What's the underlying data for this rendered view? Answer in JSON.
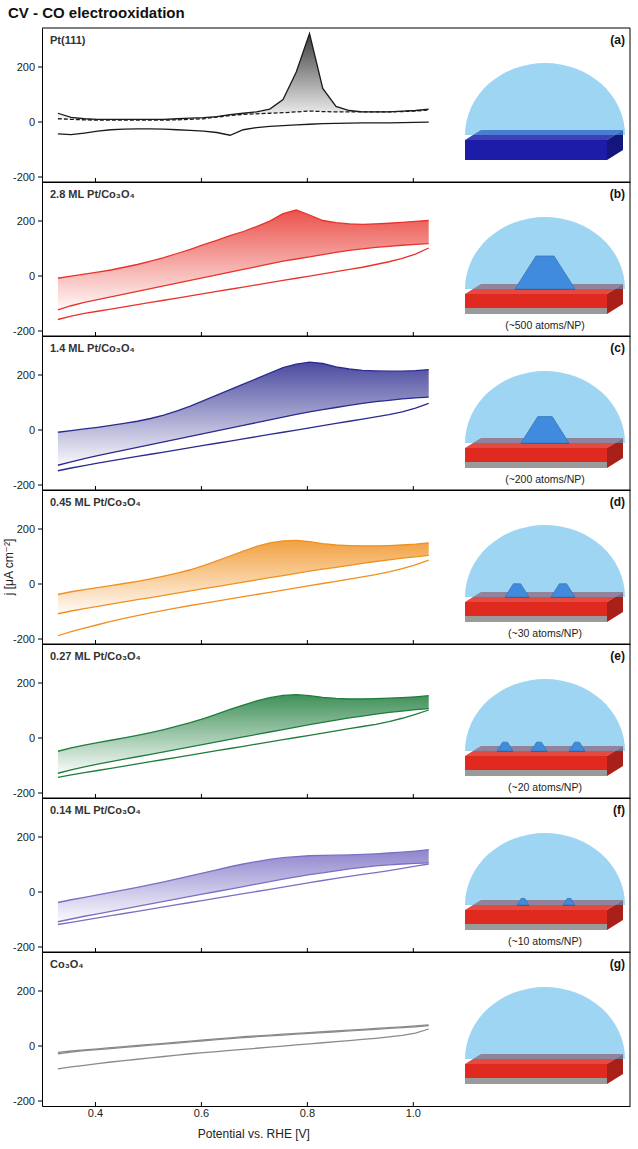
{
  "chart_data": [
    {
      "type": "line",
      "title": "CV - CO electrooxidation",
      "subtitle": "Pt(111)",
      "panel": "(a)",
      "x": [
        0.33,
        0.355,
        0.38,
        0.405,
        0.43,
        0.455,
        0.48,
        0.505,
        0.53,
        0.555,
        0.58,
        0.605,
        0.63,
        0.655,
        0.68,
        0.705,
        0.73,
        0.755,
        0.78,
        0.805,
        0.83,
        0.855,
        0.88,
        0.905,
        0.93,
        0.955,
        0.98,
        1.005,
        1.03
      ],
      "series": [
        {
          "type": "area",
          "color": "#1a1a1a",
          "values": [
            30,
            15,
            10,
            8,
            8,
            8,
            8,
            8,
            8,
            10,
            12,
            14,
            18,
            25,
            30,
            35,
            45,
            80,
            180,
            320,
            120,
            55,
            40,
            35,
            35,
            35,
            38,
            40,
            45
          ]
        },
        {
          "color": "#1a1a1a",
          "line_style": "dashed",
          "values": [
            10,
            8,
            6,
            5,
            5,
            5,
            5,
            5,
            5,
            6,
            8,
            10,
            16,
            22,
            26,
            28,
            30,
            32,
            35,
            38,
            36,
            35,
            35,
            35,
            35,
            35,
            36,
            38,
            42
          ]
        },
        {
          "color": "#1a1a1a",
          "values": [
            -45,
            -48,
            -42,
            -35,
            -30,
            -28,
            -27,
            -27,
            -28,
            -30,
            -32,
            -35,
            -40,
            -50,
            -30,
            -22,
            -18,
            -15,
            -12,
            -10,
            -8,
            -7,
            -6,
            -5,
            -5,
            -5,
            -4,
            -3,
            -2
          ]
        }
      ],
      "xlim": [
        0.3,
        1.41
      ],
      "xticks": [
        0.4,
        0.6,
        0.8,
        {
          "value": 1.0,
          "label": "1.0"
        }
      ],
      "ylim": [
        -220,
        340
      ],
      "yticks": [
        -200,
        0,
        200
      ],
      "tick_labels": "y"
    },
    {
      "type": "line",
      "subtitle": "2.8 ML Pt/Co₃O₄",
      "panel": "(b)",
      "annotation": "(~500 atoms/NP)",
      "x": [
        0.33,
        0.355,
        0.38,
        0.405,
        0.43,
        0.455,
        0.48,
        0.505,
        0.53,
        0.555,
        0.58,
        0.605,
        0.63,
        0.655,
        0.68,
        0.705,
        0.73,
        0.755,
        0.78,
        0.805,
        0.83,
        0.855,
        0.88,
        0.905,
        0.93,
        0.955,
        0.98,
        1.005,
        1.03
      ],
      "series": [
        {
          "type": "area",
          "color": "#e8332b",
          "values": [
            -10,
            -2,
            5,
            12,
            20,
            30,
            40,
            52,
            65,
            80,
            95,
            112,
            128,
            145,
            160,
            178,
            198,
            225,
            238,
            220,
            200,
            192,
            188,
            186,
            188,
            190,
            193,
            197,
            200
          ]
        },
        {
          "color": "#e8332b",
          "values": [
            -125,
            -110,
            -98,
            -88,
            -78,
            -68,
            -58,
            -48,
            -38,
            -28,
            -18,
            -8,
            2,
            12,
            22,
            32,
            42,
            52,
            60,
            68,
            76,
            84,
            91,
            97,
            102,
            106,
            110,
            113,
            116
          ]
        },
        {
          "color": "#e8332b",
          "values": [
            -160,
            -148,
            -138,
            -130,
            -122,
            -114,
            -106,
            -98,
            -90,
            -82,
            -74,
            -66,
            -58,
            -50,
            -42,
            -34,
            -26,
            -18,
            -10,
            -2,
            6,
            14,
            22,
            30,
            40,
            50,
            62,
            78,
            100
          ]
        }
      ],
      "xlim": [
        0.3,
        1.41
      ],
      "xticks": [
        0.4,
        0.6,
        0.8,
        {
          "value": 1.0,
          "label": "1.0"
        }
      ],
      "ylim": [
        -220,
        340
      ],
      "yticks": [
        -200,
        0,
        200
      ],
      "tick_labels": "y"
    },
    {
      "type": "line",
      "subtitle": "1.4 ML Pt/Co₃O₄",
      "panel": "(c)",
      "annotation": "(~200 atoms/NP)",
      "x": [
        0.33,
        0.355,
        0.38,
        0.405,
        0.43,
        0.455,
        0.48,
        0.505,
        0.53,
        0.555,
        0.58,
        0.605,
        0.63,
        0.655,
        0.68,
        0.705,
        0.73,
        0.755,
        0.78,
        0.805,
        0.83,
        0.855,
        0.88,
        0.905,
        0.93,
        0.955,
        0.98,
        1.005,
        1.03
      ],
      "series": [
        {
          "type": "area",
          "color": "#2b2a8f",
          "values": [
            -10,
            -4,
            2,
            8,
            15,
            22,
            30,
            40,
            52,
            68,
            85,
            105,
            125,
            145,
            165,
            185,
            205,
            225,
            238,
            245,
            240,
            228,
            220,
            215,
            213,
            212,
            212,
            214,
            218
          ]
        },
        {
          "color": "#2b2a8f",
          "values": [
            -130,
            -118,
            -106,
            -95,
            -85,
            -75,
            -65,
            -55,
            -45,
            -35,
            -25,
            -15,
            -5,
            5,
            15,
            25,
            35,
            45,
            55,
            64,
            72,
            80,
            88,
            95,
            101,
            106,
            111,
            115,
            118
          ]
        },
        {
          "color": "#2b2a8f",
          "values": [
            -150,
            -140,
            -131,
            -122,
            -114,
            -106,
            -98,
            -90,
            -82,
            -74,
            -66,
            -58,
            -50,
            -42,
            -34,
            -26,
            -18,
            -10,
            -2,
            6,
            14,
            22,
            30,
            38,
            46,
            54,
            64,
            78,
            95
          ]
        }
      ],
      "xlim": [
        0.3,
        1.41
      ],
      "xticks": [
        0.4,
        0.6,
        0.8,
        {
          "value": 1.0,
          "label": "1.0"
        }
      ],
      "ylim": [
        -220,
        340
      ],
      "yticks": [
        -200,
        0,
        200
      ],
      "tick_labels": "y"
    },
    {
      "type": "line",
      "subtitle": "0.45 ML Pt/Co₃O₄",
      "panel": "(d)",
      "annotation": "(~30 atoms/NP)",
      "ylabel": "j [μA cm⁻²]",
      "x": [
        0.33,
        0.355,
        0.38,
        0.405,
        0.43,
        0.455,
        0.48,
        0.505,
        0.53,
        0.555,
        0.58,
        0.605,
        0.63,
        0.655,
        0.68,
        0.705,
        0.73,
        0.755,
        0.78,
        0.805,
        0.83,
        0.855,
        0.88,
        0.905,
        0.93,
        0.955,
        0.98,
        1.005,
        1.03
      ],
      "series": [
        {
          "type": "area",
          "color": "#f0901e",
          "values": [
            -40,
            -30,
            -22,
            -15,
            -8,
            0,
            8,
            17,
            27,
            38,
            50,
            65,
            82,
            100,
            118,
            135,
            148,
            155,
            157,
            152,
            145,
            140,
            138,
            137,
            137,
            138,
            140,
            143,
            148
          ]
        },
        {
          "color": "#f0901e",
          "values": [
            -110,
            -100,
            -91,
            -83,
            -75,
            -67,
            -59,
            -51,
            -43,
            -35,
            -27,
            -19,
            -11,
            -3,
            5,
            13,
            21,
            29,
            37,
            45,
            52,
            59,
            66,
            73,
            80,
            86,
            92,
            97,
            102
          ]
        },
        {
          "color": "#f0901e",
          "values": [
            -190,
            -175,
            -162,
            -150,
            -138,
            -127,
            -117,
            -107,
            -98,
            -89,
            -80,
            -72,
            -64,
            -56,
            -48,
            -40,
            -32,
            -24,
            -16,
            -8,
            0,
            8,
            16,
            24,
            32,
            42,
            54,
            68,
            85
          ]
        }
      ],
      "xlim": [
        0.3,
        1.41
      ],
      "xticks": [
        0.4,
        0.6,
        0.8,
        {
          "value": 1.0,
          "label": "1.0"
        }
      ],
      "ylim": [
        -220,
        340
      ],
      "yticks": [
        -200,
        0,
        200
      ],
      "tick_labels": "y"
    },
    {
      "type": "line",
      "subtitle": "0.27 ML Pt/Co₃O₄",
      "panel": "(e)",
      "annotation": "(~20 atoms/NP)",
      "x": [
        0.33,
        0.355,
        0.38,
        0.405,
        0.43,
        0.455,
        0.48,
        0.505,
        0.53,
        0.555,
        0.58,
        0.605,
        0.63,
        0.655,
        0.68,
        0.705,
        0.73,
        0.755,
        0.78,
        0.805,
        0.83,
        0.855,
        0.88,
        0.905,
        0.93,
        0.955,
        0.98,
        1.005,
        1.03
      ],
      "series": [
        {
          "type": "area",
          "color": "#1e7d3c",
          "values": [
            -50,
            -38,
            -28,
            -19,
            -10,
            -1,
            8,
            18,
            29,
            41,
            54,
            69,
            85,
            102,
            118,
            133,
            145,
            153,
            156,
            152,
            146,
            142,
            140,
            140,
            141,
            143,
            145,
            148,
            152
          ]
        },
        {
          "color": "#1e7d3c",
          "values": [
            -130,
            -118,
            -107,
            -97,
            -88,
            -79,
            -70,
            -61,
            -52,
            -43,
            -34,
            -25,
            -16,
            -7,
            2,
            11,
            20,
            29,
            38,
            47,
            55,
            63,
            71,
            78,
            85,
            91,
            96,
            101,
            105
          ]
        },
        {
          "color": "#1e7d3c",
          "values": [
            -145,
            -136,
            -128,
            -120,
            -112,
            -104,
            -96,
            -88,
            -80,
            -72,
            -64,
            -56,
            -48,
            -40,
            -32,
            -24,
            -16,
            -8,
            0,
            8,
            16,
            24,
            32,
            40,
            48,
            58,
            70,
            84,
            100
          ]
        }
      ],
      "xlim": [
        0.3,
        1.41
      ],
      "xticks": [
        0.4,
        0.6,
        0.8,
        {
          "value": 1.0,
          "label": "1.0"
        }
      ],
      "ylim": [
        -220,
        340
      ],
      "yticks": [
        -200,
        0,
        200
      ],
      "tick_labels": "y"
    },
    {
      "type": "line",
      "subtitle": "0.14 ML Pt/Co₃O₄",
      "panel": "(f)",
      "annotation": "(~10 atoms/NP)",
      "x": [
        0.33,
        0.355,
        0.38,
        0.405,
        0.43,
        0.455,
        0.48,
        0.505,
        0.53,
        0.555,
        0.58,
        0.605,
        0.63,
        0.655,
        0.68,
        0.705,
        0.73,
        0.755,
        0.78,
        0.805,
        0.83,
        0.855,
        0.88,
        0.905,
        0.93,
        0.955,
        0.98,
        1.005,
        1.03
      ],
      "series": [
        {
          "type": "area",
          "color": "#7a6fc4",
          "values": [
            -40,
            -30,
            -21,
            -12,
            -3,
            6,
            15,
            25,
            35,
            46,
            57,
            68,
            79,
            90,
            100,
            109,
            117,
            123,
            127,
            130,
            131,
            132,
            133,
            135,
            137,
            140,
            143,
            147,
            152
          ]
        },
        {
          "color": "#7a6fc4",
          "values": [
            -110,
            -100,
            -90,
            -81,
            -72,
            -63,
            -54,
            -45,
            -36,
            -27,
            -18,
            -9,
            0,
            9,
            18,
            27,
            36,
            45,
            53,
            61,
            68,
            75,
            82,
            88,
            93,
            97,
            100,
            102,
            104
          ]
        },
        {
          "color": "#7a6fc4",
          "values": [
            -120,
            -112,
            -104,
            -96,
            -88,
            -80,
            -72,
            -64,
            -56,
            -48,
            -40,
            -32,
            -24,
            -16,
            -8,
            0,
            8,
            16,
            24,
            32,
            40,
            48,
            55,
            62,
            69,
            76,
            84,
            92,
            100
          ]
        }
      ],
      "xlim": [
        0.3,
        1.41
      ],
      "xticks": [
        0.4,
        0.6,
        0.8,
        {
          "value": 1.0,
          "label": "1.0"
        }
      ],
      "ylim": [
        -220,
        340
      ],
      "yticks": [
        -200,
        0,
        200
      ],
      "tick_labels": "y"
    },
    {
      "type": "line",
      "subtitle": "Co₃O₄",
      "panel": "(g)",
      "xlabel": "Potential vs. RHE [V]",
      "x": [
        0.33,
        0.355,
        0.38,
        0.405,
        0.43,
        0.455,
        0.48,
        0.505,
        0.53,
        0.555,
        0.58,
        0.605,
        0.63,
        0.655,
        0.68,
        0.705,
        0.73,
        0.755,
        0.78,
        0.805,
        0.83,
        0.855,
        0.88,
        0.905,
        0.93,
        0.955,
        0.98,
        1.005,
        1.03
      ],
      "series": [
        {
          "color": "#8a8a8a",
          "values": [
            -25,
            -20,
            -16,
            -12,
            -8,
            -4,
            0,
            4,
            8,
            12,
            16,
            20,
            24,
            28,
            32,
            35,
            38,
            41,
            44,
            47,
            50,
            53,
            56,
            59,
            62,
            65,
            68,
            71,
            75
          ]
        },
        {
          "color": "#8a8a8a",
          "values": [
            -30,
            -24,
            -19,
            -15,
            -11,
            -7,
            -3,
            1,
            5,
            9,
            13,
            17,
            21,
            25,
            29,
            32,
            35,
            38,
            41,
            44,
            47,
            50,
            53,
            56,
            59,
            62,
            65,
            68,
            72
          ]
        },
        {
          "color": "#8a8a8a",
          "values": [
            -85,
            -78,
            -72,
            -66,
            -60,
            -55,
            -50,
            -45,
            -40,
            -35,
            -30,
            -26,
            -22,
            -18,
            -14,
            -10,
            -6,
            -2,
            2,
            6,
            10,
            14,
            18,
            22,
            26,
            31,
            37,
            45,
            60
          ]
        }
      ],
      "xlim": [
        0.3,
        1.41
      ],
      "xticks": [
        0.4,
        0.6,
        0.8,
        {
          "value": 1.0,
          "label": "1.0"
        }
      ],
      "ylim": [
        -220,
        340
      ],
      "yticks": [
        -200,
        0,
        200
      ]
    }
  ]
}
